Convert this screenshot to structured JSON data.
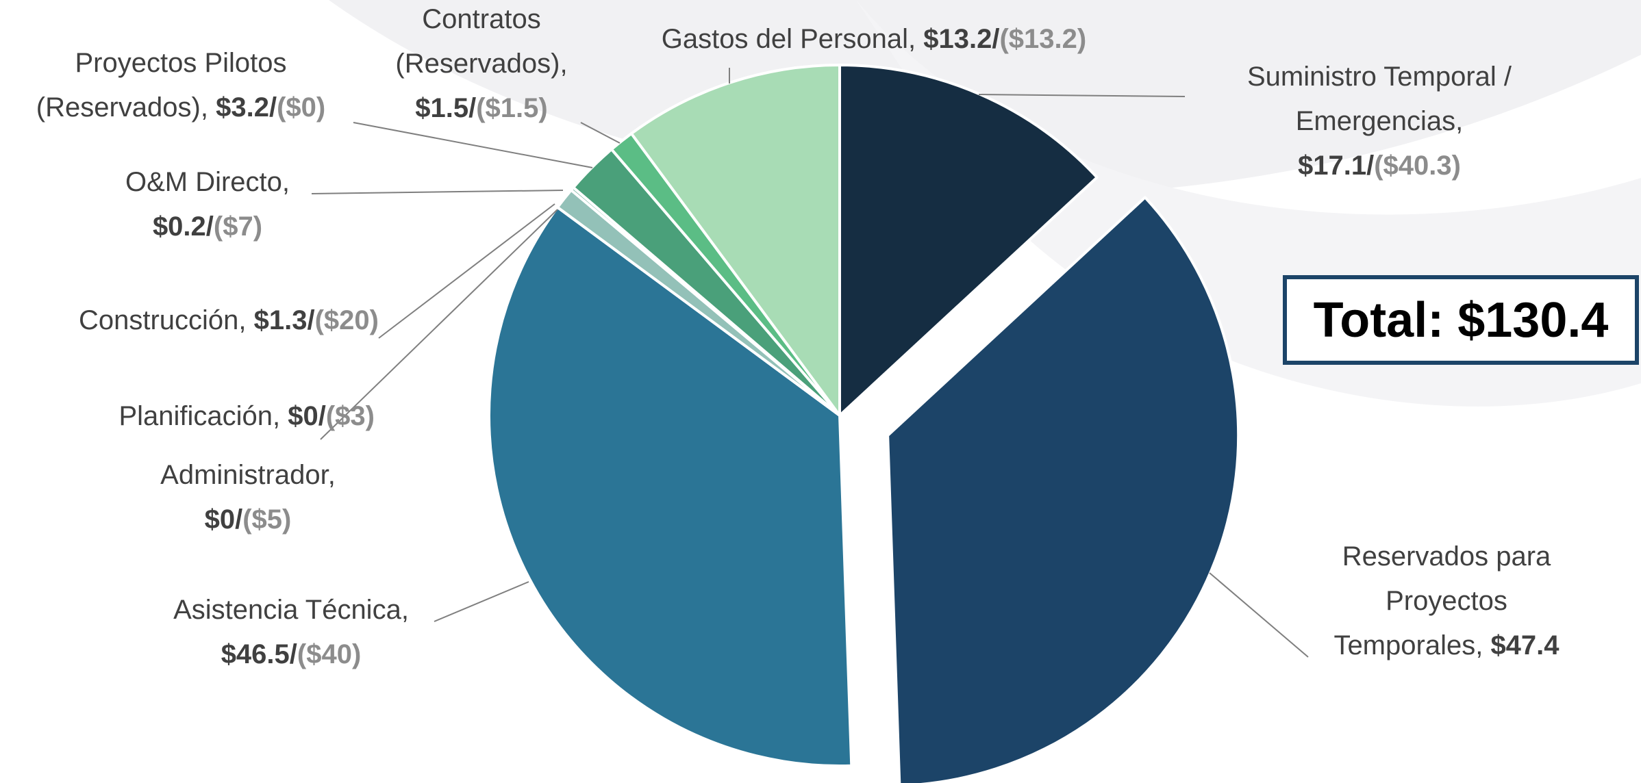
{
  "chart_data": {
    "type": "pie",
    "categories": [
      "Suministro Temporal / Emergencias,",
      "Reservados para Proyectos Temporales,",
      "Asistencia Técnica,",
      "Administrador,",
      "Planificación,",
      "Construcción,",
      "O&M Directo,",
      "Proyectos Pilotos (Reservados),",
      "Contratos (Reservados),",
      "Gastos del Personal,"
    ],
    "values": [
      17.1,
      47.4,
      46.5,
      0,
      0,
      1.3,
      0.2,
      3.2,
      1.5,
      13.2
    ],
    "value_labels": [
      "$17.1/",
      "$47.4",
      "$46.5/",
      "$0/",
      "$0/",
      "$1.3/",
      "$0.2/",
      "$3.2/",
      "$1.5/",
      "$13.2/"
    ],
    "secondary_values": [
      40.3,
      null,
      40,
      5,
      3,
      20,
      7,
      0,
      1.5,
      13.2
    ],
    "secondary_labels": [
      "($40.3)",
      null,
      "($40)",
      "($5)",
      "($3)",
      "($20)",
      "($7)",
      "($0)",
      "($1.5)",
      "($13.2)"
    ],
    "colors": [
      "#152d42",
      "#1c4468",
      "#2b7596",
      "#93c1b8",
      "#93c1b8",
      "#93c1b8",
      "#6fae9a",
      "#4aa07a",
      "#5bbd85",
      "#a8dcb5"
    ],
    "exploded": [
      1
    ],
    "total_label": "Total: $130.4"
  }
}
